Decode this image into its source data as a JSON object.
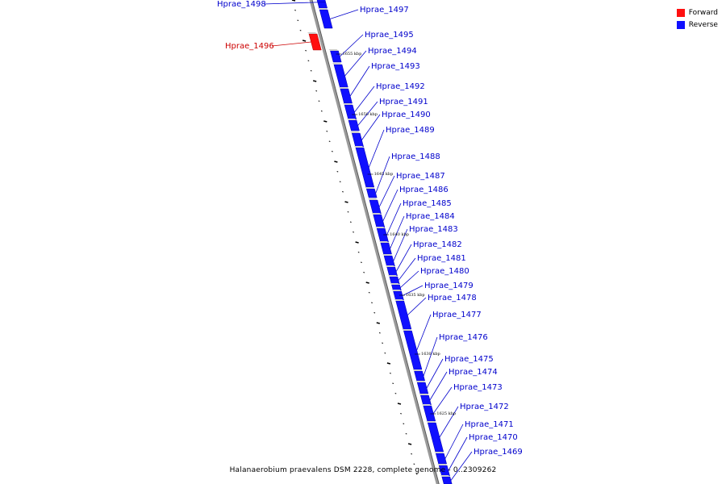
{
  "legend": {
    "forward_label": "Forward",
    "reverse_label": "Reverse",
    "forward_color": "#ff1010",
    "reverse_color": "#1010ff"
  },
  "caption": "Halanaerobium praevalens DSM 2228, complete genome - 0..2309262",
  "colors": {
    "forward_label_color": "#cc0000",
    "reverse_label_color": "#0000cc",
    "axis_color": "#888888"
  },
  "scale_labels": [
    "1655 kbp",
    "1650 kbp",
    "1645 kbp",
    "1640 kbp",
    "1635 kbp",
    "1630 kbp",
    "1625 kbp"
  ],
  "genes": [
    {
      "label": "Hprae_1498",
      "strand": "reverse"
    },
    {
      "label": "Hprae_1497",
      "strand": "reverse"
    },
    {
      "label": "Hprae_1496",
      "strand": "forward"
    },
    {
      "label": "Hprae_1495",
      "strand": "reverse"
    },
    {
      "label": "Hprae_1494",
      "strand": "reverse"
    },
    {
      "label": "Hprae_1493",
      "strand": "reverse"
    },
    {
      "label": "Hprae_1492",
      "strand": "reverse"
    },
    {
      "label": "Hprae_1491",
      "strand": "reverse"
    },
    {
      "label": "Hprae_1490",
      "strand": "reverse"
    },
    {
      "label": "Hprae_1489",
      "strand": "reverse"
    },
    {
      "label": "Hprae_1488",
      "strand": "reverse"
    },
    {
      "label": "Hprae_1487",
      "strand": "reverse"
    },
    {
      "label": "Hprae_1486",
      "strand": "reverse"
    },
    {
      "label": "Hprae_1485",
      "strand": "reverse"
    },
    {
      "label": "Hprae_1484",
      "strand": "reverse"
    },
    {
      "label": "Hprae_1483",
      "strand": "reverse"
    },
    {
      "label": "Hprae_1482",
      "strand": "reverse"
    },
    {
      "label": "Hprae_1481",
      "strand": "reverse"
    },
    {
      "label": "Hprae_1480",
      "strand": "reverse"
    },
    {
      "label": "Hprae_1479",
      "strand": "reverse"
    },
    {
      "label": "Hprae_1478",
      "strand": "reverse"
    },
    {
      "label": "Hprae_1477",
      "strand": "reverse"
    },
    {
      "label": "Hprae_1476",
      "strand": "reverse"
    },
    {
      "label": "Hprae_1475",
      "strand": "reverse"
    },
    {
      "label": "Hprae_1474",
      "strand": "reverse"
    },
    {
      "label": "Hprae_1473",
      "strand": "reverse"
    },
    {
      "label": "Hprae_1472",
      "strand": "reverse"
    },
    {
      "label": "Hprae_1471",
      "strand": "reverse"
    },
    {
      "label": "Hprae_1470",
      "strand": "reverse"
    },
    {
      "label": "Hprae_1469",
      "strand": "reverse"
    }
  ]
}
